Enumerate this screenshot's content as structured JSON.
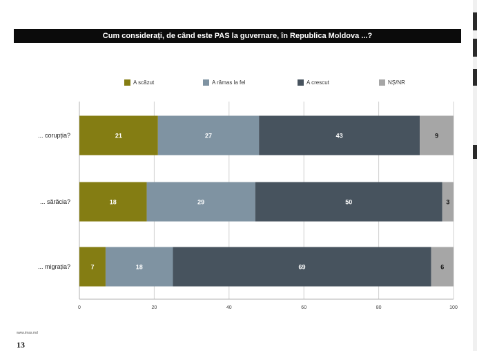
{
  "chart_data": {
    "type": "bar",
    "orientation": "horizontal",
    "stacked": true,
    "title": "Cum considerați, de când este PAS la guvernare, în Republica Moldova ...?",
    "categories": [
      "... corupția?",
      "... sărăcia?",
      "... migrația?"
    ],
    "series": [
      {
        "name": "A scăzut",
        "color": "#847d13",
        "values": [
          21,
          18,
          7
        ]
      },
      {
        "name": "A rămas la fel",
        "color": "#7f93a2",
        "values": [
          27,
          29,
          18
        ]
      },
      {
        "name": "A crescut",
        "color": "#47535e",
        "values": [
          43,
          50,
          69
        ]
      },
      {
        "name": "NȘ/NR",
        "color": "#a6a6a6",
        "values": [
          9,
          3,
          6
        ]
      }
    ],
    "xlim": [
      0,
      100
    ],
    "xticks": [
      0,
      20,
      40,
      60,
      80,
      100
    ],
    "grid": true,
    "legend": "top"
  },
  "footer": {
    "source": "www.imas.md",
    "page_number": "13"
  }
}
